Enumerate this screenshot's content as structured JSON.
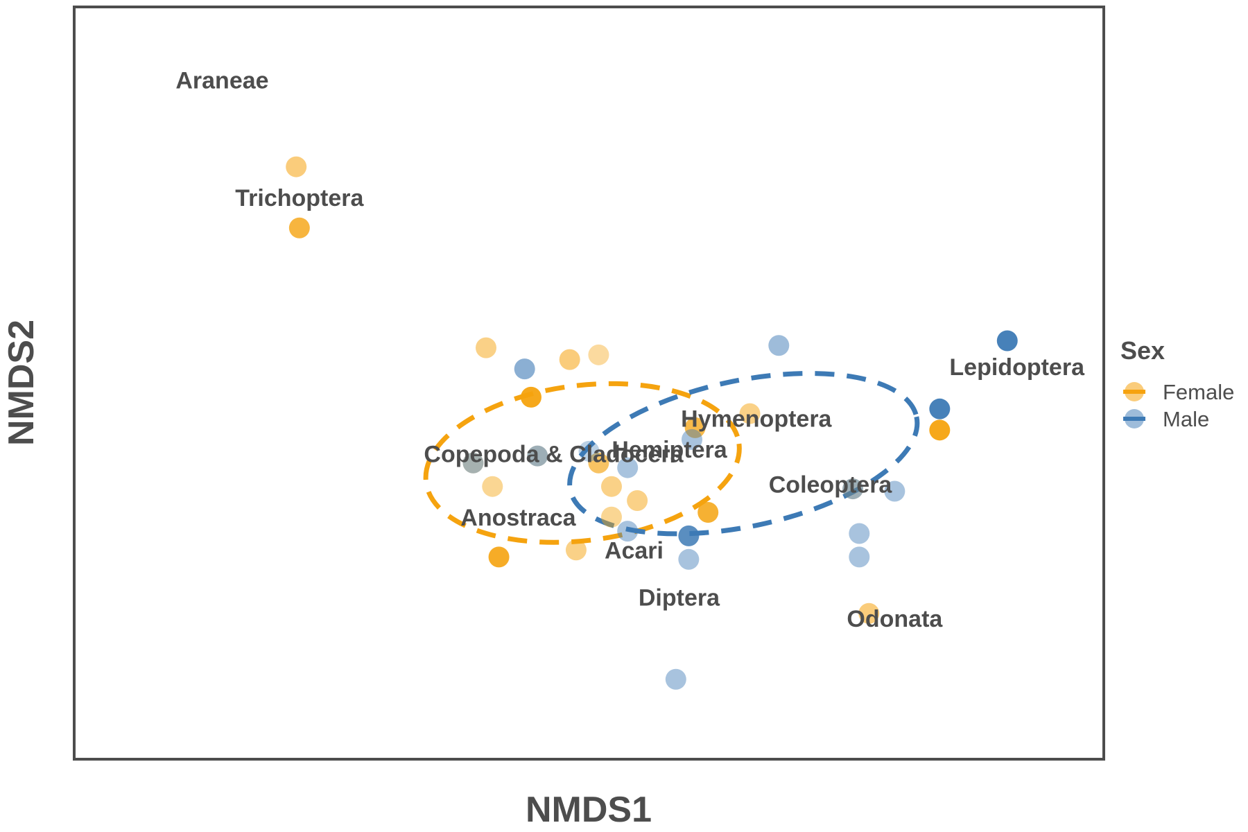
{
  "chart_data": {
    "type": "scatter",
    "title": "",
    "xlabel": "NMDS1",
    "ylabel": "NMDS2",
    "xlim": [
      -1.6,
      1.6
    ],
    "ylim": [
      -1.6,
      1.6
    ],
    "grid": false,
    "legend_position": "right",
    "legend": {
      "title": "Sex",
      "entries": [
        {
          "name": "Female",
          "color": "#f5a30f"
        },
        {
          "name": "Male",
          "color": "#3d7ab5"
        }
      ]
    },
    "series": [
      {
        "name": "Female",
        "color": "#f5a30f",
        "points": [
          {
            "x": -0.91,
            "y": 0.92,
            "alpha": 0.55
          },
          {
            "x": -0.9,
            "y": 0.66,
            "alpha": 0.8
          },
          {
            "x": -0.32,
            "y": 0.15,
            "alpha": 0.5
          },
          {
            "x": -0.18,
            "y": -0.06,
            "alpha": 0.95
          },
          {
            "x": -0.06,
            "y": 0.1,
            "alpha": 0.55
          },
          {
            "x": 0.03,
            "y": -0.34,
            "alpha": 0.65
          },
          {
            "x": -0.28,
            "y": -0.74,
            "alpha": 0.9
          },
          {
            "x": -0.04,
            "y": -0.71,
            "alpha": 0.5
          },
          {
            "x": 0.15,
            "y": -0.5,
            "alpha": 0.5
          },
          {
            "x": 0.37,
            "y": -0.55,
            "alpha": 0.85
          },
          {
            "x": 0.33,
            "y": -0.19,
            "alpha": 0.75
          },
          {
            "x": 0.5,
            "y": -0.13,
            "alpha": 0.5
          },
          {
            "x": 0.87,
            "y": -0.98,
            "alpha": 0.55
          },
          {
            "x": 1.09,
            "y": -0.2,
            "alpha": 0.95
          },
          {
            "x": -0.3,
            "y": -0.44,
            "alpha": 0.45
          },
          {
            "x": 0.07,
            "y": -0.44,
            "alpha": 0.5
          },
          {
            "x": 0.07,
            "y": -0.57,
            "alpha": 0.45
          },
          {
            "x": 0.03,
            "y": 0.12,
            "alpha": 0.4
          },
          {
            "x": -0.36,
            "y": -0.34,
            "alpha": 0.35
          },
          {
            "x": -0.16,
            "y": -0.31,
            "alpha": 0.3
          },
          {
            "x": 0.82,
            "y": -0.45,
            "alpha": 0.3
          }
        ]
      },
      {
        "name": "Male",
        "color": "#3d7ab5",
        "points": [
          {
            "x": 0.59,
            "y": 0.16,
            "alpha": 0.5
          },
          {
            "x": 1.3,
            "y": 0.18,
            "alpha": 0.95
          },
          {
            "x": 1.09,
            "y": -0.11,
            "alpha": 0.95
          },
          {
            "x": -0.2,
            "y": 0.06,
            "alpha": 0.6
          },
          {
            "x": 0.12,
            "y": -0.36,
            "alpha": 0.45
          },
          {
            "x": 0.31,
            "y": -0.65,
            "alpha": 0.85
          },
          {
            "x": 0.12,
            "y": -0.63,
            "alpha": 0.45
          },
          {
            "x": 0.31,
            "y": -0.75,
            "alpha": 0.45
          },
          {
            "x": 0.95,
            "y": -0.46,
            "alpha": 0.45
          },
          {
            "x": 0.84,
            "y": -0.64,
            "alpha": 0.45
          },
          {
            "x": 0.84,
            "y": -0.74,
            "alpha": 0.45
          },
          {
            "x": 0.27,
            "y": -1.26,
            "alpha": 0.45
          },
          {
            "x": -0.36,
            "y": -0.34,
            "alpha": 0.45
          },
          {
            "x": -0.16,
            "y": -0.31,
            "alpha": 0.5
          },
          {
            "x": 0.82,
            "y": -0.45,
            "alpha": 0.5
          },
          {
            "x": 0.32,
            "y": -0.24,
            "alpha": 0.45
          },
          {
            "x": 0.0,
            "y": -0.29,
            "alpha": 0.35
          }
        ]
      }
    ],
    "ellipses": [
      {
        "series": "Female",
        "cx": -0.02,
        "cy": -0.34,
        "rx": 0.49,
        "ry": 0.33,
        "angle_deg": 7,
        "style": "dashed"
      },
      {
        "series": "Male",
        "cx": 0.48,
        "cy": -0.3,
        "rx": 0.55,
        "ry": 0.31,
        "angle_deg": 12,
        "style": "dashed"
      }
    ],
    "annotations": [
      {
        "text": "Araneae",
        "x": -1.14,
        "y": 1.28
      },
      {
        "text": "Trichoptera",
        "x": -0.9,
        "y": 0.78
      },
      {
        "text": "Lepidoptera",
        "x": 1.33,
        "y": 0.06
      },
      {
        "text": "Hymenoptera",
        "x": 0.52,
        "y": -0.16
      },
      {
        "text": "Hemiptera",
        "x": 0.25,
        "y": -0.29
      },
      {
        "text": "Copepoda & Cladocera",
        "x": -0.11,
        "y": -0.31
      },
      {
        "text": "Coleoptera",
        "x": 0.75,
        "y": -0.44
      },
      {
        "text": "Anostraca",
        "x": -0.22,
        "y": -0.58
      },
      {
        "text": "Acari",
        "x": 0.14,
        "y": -0.72
      },
      {
        "text": "Diptera",
        "x": 0.28,
        "y": -0.92
      },
      {
        "text": "Odonata",
        "x": 0.95,
        "y": -1.01
      }
    ]
  }
}
